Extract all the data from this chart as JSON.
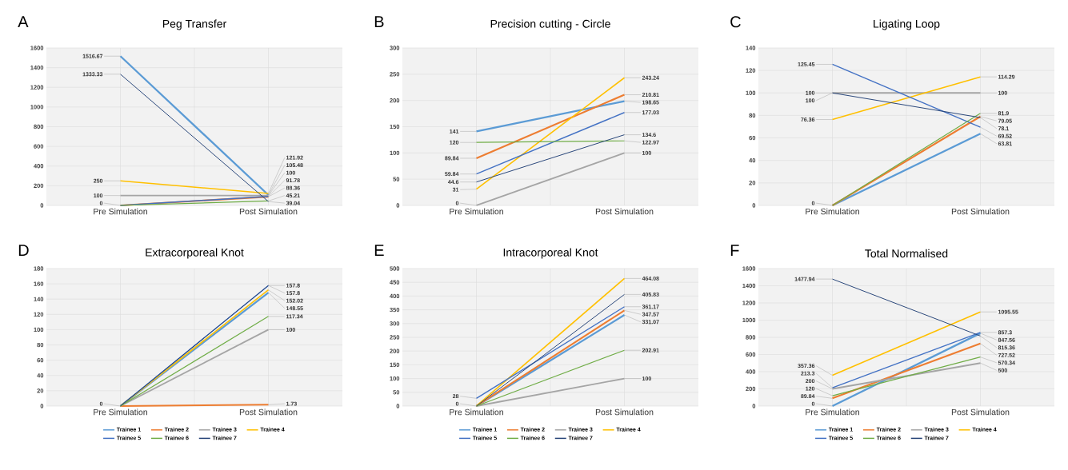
{
  "chart_data": [
    {
      "type": "line",
      "title": "Peg Transfer",
      "annotations": [
        "A"
      ],
      "categories": [
        "Pre Simulation",
        "Post Simulation"
      ],
      "ylim": [
        0,
        1600
      ],
      "yticks": [
        0,
        200,
        400,
        600,
        800,
        1000,
        1200,
        1400,
        1600
      ],
      "grid": true,
      "legend": false,
      "series": [
        {
          "color": "#5b9bd5",
          "values": [
            1516.67,
            105.48
          ],
          "value_labels": [
            "1516.67",
            "105.48"
          ]
        },
        {
          "color": "#ed7d31",
          "values": [
            0,
            88.36
          ],
          "value_labels": [
            null,
            "88.36"
          ]
        },
        {
          "color": "#a5a5a5",
          "values": [
            100,
            100
          ],
          "value_labels": [
            "100",
            "100"
          ]
        },
        {
          "color": "#ffc000",
          "values": [
            250,
            121.92
          ],
          "value_labels": [
            "250",
            "121.92"
          ]
        },
        {
          "color": "#4472c4",
          "values": [
            0,
            91.78
          ],
          "value_labels": [
            null,
            "91.78"
          ]
        },
        {
          "color": "#70ad47",
          "values": [
            0,
            45.21
          ],
          "value_labels": [
            "0",
            "45.21"
          ]
        },
        {
          "color": "#264478",
          "values": [
            1333.33,
            39.04
          ],
          "value_labels": [
            "1333.33",
            "39.04"
          ]
        }
      ]
    },
    {
      "type": "line",
      "title": "Precision cutting - Circle",
      "annotations": [
        "B"
      ],
      "categories": [
        "Pre Simulation",
        "Post Simulation"
      ],
      "ylim": [
        0,
        300
      ],
      "yticks": [
        0,
        50,
        100,
        150,
        200,
        250,
        300
      ],
      "grid": true,
      "legend": false,
      "series": [
        {
          "color": "#5b9bd5",
          "values": [
            141,
            198.65
          ],
          "value_labels": [
            "141",
            "198.65"
          ]
        },
        {
          "color": "#ed7d31",
          "values": [
            89.84,
            210.81
          ],
          "value_labels": [
            "89.84",
            "210.81"
          ]
        },
        {
          "color": "#a5a5a5",
          "values": [
            0,
            100
          ],
          "value_labels": [
            "0",
            "100"
          ]
        },
        {
          "color": "#ffc000",
          "values": [
            31,
            243.24
          ],
          "value_labels": [
            "31",
            "243.24"
          ]
        },
        {
          "color": "#4472c4",
          "values": [
            59.84,
            177.03
          ],
          "value_labels": [
            "59.84",
            "177.03"
          ]
        },
        {
          "color": "#70ad47",
          "values": [
            120,
            122.97
          ],
          "value_labels": [
            "120",
            "122.97"
          ]
        },
        {
          "color": "#264478",
          "values": [
            44.6,
            134.6
          ],
          "value_labels": [
            "44.6",
            "134.6"
          ]
        }
      ]
    },
    {
      "type": "line",
      "title": "Ligating Loop",
      "annotations": [
        "C"
      ],
      "categories": [
        "Pre Simulation",
        "Post Simulation"
      ],
      "ylim": [
        0,
        140
      ],
      "yticks": [
        0,
        20,
        40,
        60,
        80,
        100,
        120,
        140
      ],
      "grid": true,
      "legend": false,
      "series": [
        {
          "color": "#5b9bd5",
          "values": [
            0,
            63.81
          ],
          "value_labels": [
            null,
            "63.81"
          ]
        },
        {
          "color": "#ed7d31",
          "values": [
            0,
            79.05
          ],
          "value_labels": [
            null,
            "79.05"
          ]
        },
        {
          "color": "#a5a5a5",
          "values": [
            100,
            100
          ],
          "value_labels": [
            "100",
            "100"
          ]
        },
        {
          "color": "#ffc000",
          "values": [
            76.36,
            114.29
          ],
          "value_labels": [
            "76.36",
            "114.29"
          ]
        },
        {
          "color": "#4472c4",
          "values": [
            125.45,
            69.52
          ],
          "value_labels": [
            "125.45",
            "69.52"
          ]
        },
        {
          "color": "#70ad47",
          "values": [
            0,
            81.9
          ],
          "value_labels": [
            "0",
            "81.9"
          ]
        },
        {
          "color": "#264478",
          "values": [
            100,
            78.1
          ],
          "value_labels": [
            "100",
            "78.1"
          ]
        }
      ]
    },
    {
      "type": "line",
      "title": "Extracorporeal Knot",
      "annotations": [
        "D"
      ],
      "categories": [
        "Pre Simulation",
        "Post Simulation"
      ],
      "ylim": [
        0,
        180
      ],
      "yticks": [
        0,
        20,
        40,
        60,
        80,
        100,
        120,
        140,
        160,
        180
      ],
      "grid": true,
      "legend": "bottom",
      "series": [
        {
          "name": "Trainee 1",
          "color": "#5b9bd5",
          "values": [
            0,
            148.55
          ],
          "value_labels": [
            null,
            "148.55"
          ]
        },
        {
          "name": "Trainee 2",
          "color": "#ed7d31",
          "values": [
            0,
            1.73
          ],
          "value_labels": [
            null,
            "1.73"
          ]
        },
        {
          "name": "Trainee 3",
          "color": "#a5a5a5",
          "values": [
            0,
            100
          ],
          "value_labels": [
            null,
            "100"
          ]
        },
        {
          "name": "Trainee 4",
          "color": "#ffc000",
          "values": [
            0,
            152.02
          ],
          "value_labels": [
            null,
            "152.02"
          ]
        },
        {
          "name": "Trainee 5",
          "color": "#4472c4",
          "values": [
            0,
            157.8
          ],
          "value_labels": [
            null,
            "157.8"
          ]
        },
        {
          "name": "Trainee 6",
          "color": "#70ad47",
          "values": [
            0,
            117.34
          ],
          "value_labels": [
            null,
            "117.34"
          ]
        },
        {
          "name": "Trainee 7",
          "color": "#264478",
          "values": [
            0,
            157.8
          ],
          "value_labels": [
            "0",
            "157.8"
          ]
        }
      ]
    },
    {
      "type": "line",
      "title": "Intracorporeal Knot",
      "annotations": [
        "E"
      ],
      "categories": [
        "Pre Simulation",
        "Post Simulation"
      ],
      "ylim": [
        0,
        500
      ],
      "yticks": [
        0,
        50,
        100,
        150,
        200,
        250,
        300,
        350,
        400,
        450,
        500
      ],
      "grid": true,
      "legend": "bottom",
      "series": [
        {
          "name": "Trainee 1",
          "color": "#5b9bd5",
          "values": [
            0,
            331.07
          ],
          "value_labels": [
            null,
            "331.07"
          ]
        },
        {
          "name": "Trainee 2",
          "color": "#ed7d31",
          "values": [
            0,
            347.57
          ],
          "value_labels": [
            null,
            "347.57"
          ]
        },
        {
          "name": "Trainee 3",
          "color": "#a5a5a5",
          "values": [
            0,
            100
          ],
          "value_labels": [
            "0",
            "100"
          ]
        },
        {
          "name": "Trainee 4",
          "color": "#ffc000",
          "values": [
            0,
            464.08
          ],
          "value_labels": [
            null,
            "464.08"
          ]
        },
        {
          "name": "Trainee 5",
          "color": "#4472c4",
          "values": [
            28,
            361.17
          ],
          "value_labels": [
            "28",
            "361.17"
          ]
        },
        {
          "name": "Trainee 6",
          "color": "#70ad47",
          "values": [
            0,
            202.91
          ],
          "value_labels": [
            null,
            "202.91"
          ]
        },
        {
          "name": "Trainee 7",
          "color": "#264478",
          "values": [
            0,
            405.83
          ],
          "value_labels": [
            null,
            "405.83"
          ]
        }
      ]
    },
    {
      "type": "line",
      "title": "Total Normalised",
      "annotations": [
        "F"
      ],
      "categories": [
        "Pre Simulation",
        "Post Simulation"
      ],
      "ylim": [
        0,
        1600
      ],
      "yticks": [
        0,
        200,
        400,
        600,
        800,
        1000,
        1200,
        1400,
        1600
      ],
      "grid": true,
      "legend": "bottom",
      "series": [
        {
          "name": "Trainee 1",
          "color": "#5b9bd5",
          "values": [
            0,
            847.56
          ],
          "value_labels": [
            "0",
            "847.56"
          ]
        },
        {
          "name": "Trainee 2",
          "color": "#ed7d31",
          "values": [
            89.84,
            727.52
          ],
          "value_labels": [
            "89.84",
            "727.52"
          ]
        },
        {
          "name": "Trainee 3",
          "color": "#a5a5a5",
          "values": [
            200,
            500
          ],
          "value_labels": [
            "200",
            "500"
          ]
        },
        {
          "name": "Trainee 4",
          "color": "#ffc000",
          "values": [
            357.36,
            1095.55
          ],
          "value_labels": [
            "357.36",
            "1095.55"
          ]
        },
        {
          "name": "Trainee 5",
          "color": "#4472c4",
          "values": [
            213.3,
            857.3
          ],
          "value_labels": [
            "213.3",
            "857.3"
          ]
        },
        {
          "name": "Trainee 6",
          "color": "#70ad47",
          "values": [
            120,
            570.34
          ],
          "value_labels": [
            "120",
            "570.34"
          ]
        },
        {
          "name": "Trainee 7",
          "color": "#264478",
          "values": [
            1477.94,
            815.36
          ],
          "value_labels": [
            "1477.94",
            "815.36"
          ]
        }
      ]
    }
  ]
}
